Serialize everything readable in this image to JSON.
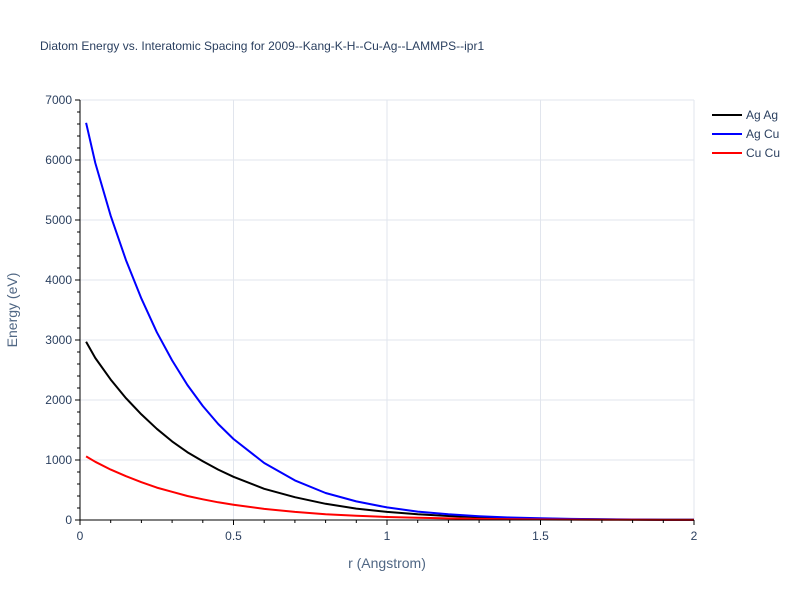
{
  "chart_data": {
    "type": "line",
    "title": "Diatom Energy vs. Interatomic Spacing for 2009--Kang-K-H--Cu-Ag--LAMMPS--ipr1",
    "xlabel": "r (Angstrom)",
    "ylabel": "Energy (eV)",
    "xlim": [
      0,
      2
    ],
    "ylim": [
      0,
      7000
    ],
    "xticks": [
      0,
      0.5,
      1,
      1.5,
      2
    ],
    "xtick_labels": [
      "0",
      "0.5",
      "1",
      "1.5",
      "2"
    ],
    "yticks": [
      0,
      1000,
      2000,
      3000,
      4000,
      5000,
      6000,
      7000
    ],
    "ytick_labels": [
      "0",
      "1000",
      "2000",
      "3000",
      "4000",
      "5000",
      "6000",
      "7000"
    ],
    "grid": true,
    "legend_position": "top-right",
    "x": [
      0.02,
      0.05,
      0.1,
      0.15,
      0.2,
      0.25,
      0.3,
      0.35,
      0.4,
      0.45,
      0.5,
      0.6,
      0.7,
      0.8,
      0.9,
      1.0,
      1.1,
      1.2,
      1.3,
      1.4,
      1.5,
      1.6,
      1.7,
      1.8,
      1.9,
      2.0
    ],
    "series": [
      {
        "name": "Ag Ag",
        "color": "#000000",
        "values": [
          2970,
          2700,
          2340,
          2030,
          1760,
          1520,
          1310,
          1130,
          980,
          840,
          720,
          520,
          380,
          270,
          190,
          135,
          95,
          66,
          46,
          32,
          22,
          15,
          10,
          7,
          5,
          3
        ]
      },
      {
        "name": "Ag Cu",
        "color": "#0000ff",
        "values": [
          6620,
          5950,
          5070,
          4330,
          3690,
          3130,
          2660,
          2250,
          1900,
          1600,
          1350,
          950,
          660,
          450,
          310,
          210,
          140,
          95,
          63,
          42,
          28,
          18,
          12,
          8,
          5,
          3
        ]
      },
      {
        "name": "Cu Cu",
        "color": "#ff0000",
        "values": [
          1060,
          970,
          840,
          730,
          630,
          540,
          470,
          400,
          345,
          295,
          255,
          185,
          135,
          97,
          70,
          50,
          36,
          26,
          18,
          13,
          9,
          6,
          4,
          3,
          2,
          1
        ]
      }
    ]
  }
}
